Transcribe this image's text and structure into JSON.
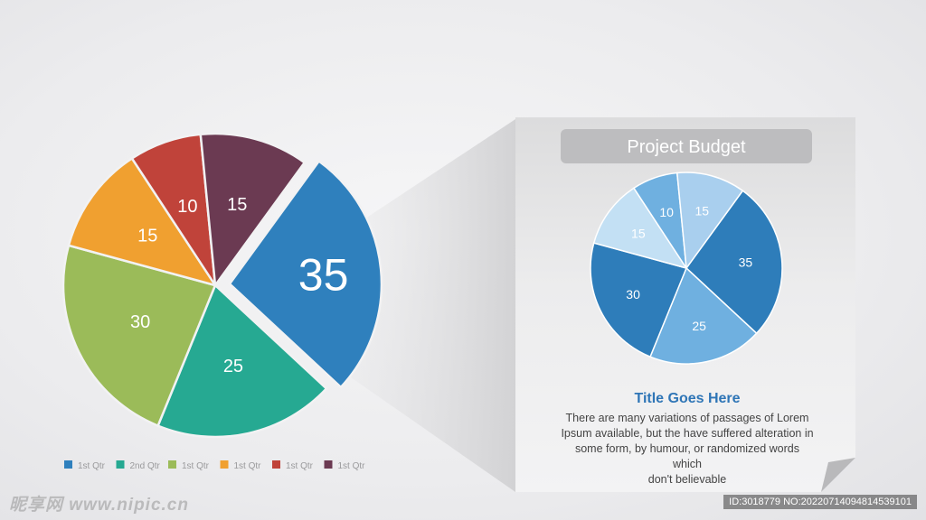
{
  "chart_data": [
    {
      "type": "pie",
      "values": [
        35,
        25,
        30,
        15,
        10,
        15
      ],
      "value_labels": [
        "35",
        "25",
        "30",
        "15",
        "10",
        "15"
      ],
      "slice_colors": [
        "#2f80bd",
        "#26a992",
        "#9bbb59",
        "#f0a030",
        "#c0433a",
        "#6b3a52"
      ],
      "exploded_slice": 0,
      "legend_position": "bottom",
      "legend": [
        {
          "label": "1st Qtr",
          "color": "#2f80bd"
        },
        {
          "label": "2nd Qtr",
          "color": "#26a992"
        },
        {
          "label": "1st Qtr",
          "color": "#9bbb59"
        },
        {
          "label": "1st Qtr",
          "color": "#f0a030"
        },
        {
          "label": "1st Qtr",
          "color": "#c0433a"
        },
        {
          "label": "1st Qtr",
          "color": "#6b3a52"
        }
      ]
    },
    {
      "type": "pie",
      "title": "Project Budget",
      "values": [
        35,
        25,
        30,
        15,
        10,
        15
      ],
      "value_labels": [
        "35",
        "25",
        "30",
        "15",
        "10",
        "15"
      ],
      "slice_colors": [
        "#2e7dba",
        "#6fb0e0",
        "#2e7dba",
        "#c3e0f4",
        "#6fb0e0",
        "#a9cfee"
      ]
    }
  ],
  "callout": {
    "heading": "Title Goes Here",
    "body": "There are many variations of passages  of Lorem\nIpsum available, but the have suffered alteration in\nsome  form, by humour, or randomized words\nwhich\ndon't believable"
  },
  "watermark": {
    "left": "昵享网 www.nipic.cn",
    "right": "ID:3018779 NO:20220714094814539101"
  }
}
